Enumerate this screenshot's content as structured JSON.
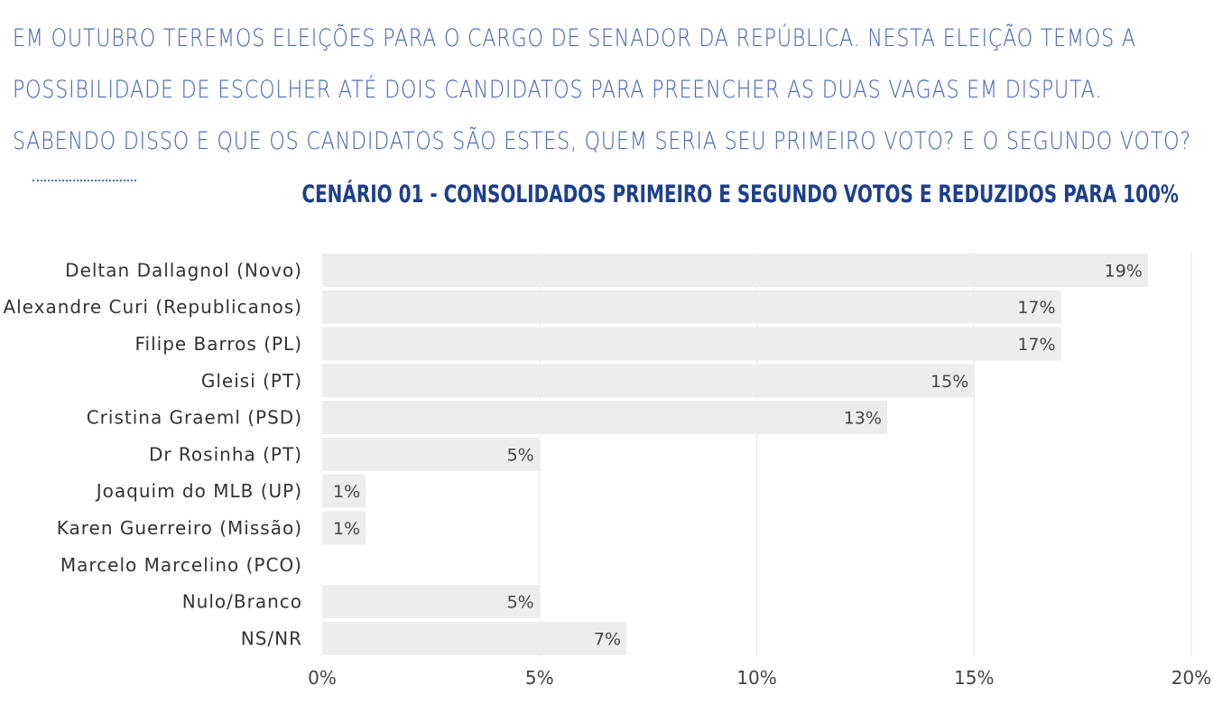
{
  "question": {
    "line1": "EM OUTUBRO TEREMOS ELEIÇÕES PARA O CARGO DE SENADOR DA REPÚBLICA. NESTA ELEIÇÃO TEMOS A",
    "line2": "POSSIBILIDADE DE ESCOLHER ATÉ DOIS CANDIDATOS PARA PREENCHER AS DUAS VAGAS EM DISPUTA.",
    "line3": "SABENDO DISSO E QUE OS CANDIDATOS SÃO ESTES, QUEM SERIA SEU PRIMEIRO VOTO? E O SEGUNDO VOTO?"
  },
  "chart_data": {
    "type": "bar",
    "orientation": "horizontal",
    "title": "CENÁRIO 01 - CONSOLIDADOS PRIMEIRO E SEGUNDO VOTOS E REDUZIDOS PARA 100%",
    "categories": [
      "Deltan Dallagnol (Novo)",
      "Alexandre Curi (Republicanos)",
      "Filipe Barros (PL)",
      "Gleisi (PT)",
      "Cristina Graeml (PSD)",
      "Dr Rosinha (PT)",
      "Joaquim do MLB (UP)",
      "Karen Guerreiro (Missão)",
      "Marcelo Marcelino (PCO)",
      "Nulo/Branco",
      "NS/NR"
    ],
    "values": [
      19,
      17,
      17,
      15,
      13,
      5,
      1,
      1,
      0,
      5,
      7
    ],
    "value_labels": [
      "19%",
      "17%",
      "17%",
      "15%",
      "13%",
      "5%",
      "1%",
      "1%",
      "",
      "5%",
      "7%"
    ],
    "xlim": [
      0,
      20
    ],
    "x_ticks": [
      0,
      5,
      10,
      15,
      20
    ],
    "x_tick_labels": [
      "0%",
      "5%",
      "10%",
      "15%",
      "20%"
    ],
    "grid": true,
    "bar_color": "#eceeee",
    "title_color": "#1e3f8c",
    "question_color": "#4a6bb8"
  }
}
